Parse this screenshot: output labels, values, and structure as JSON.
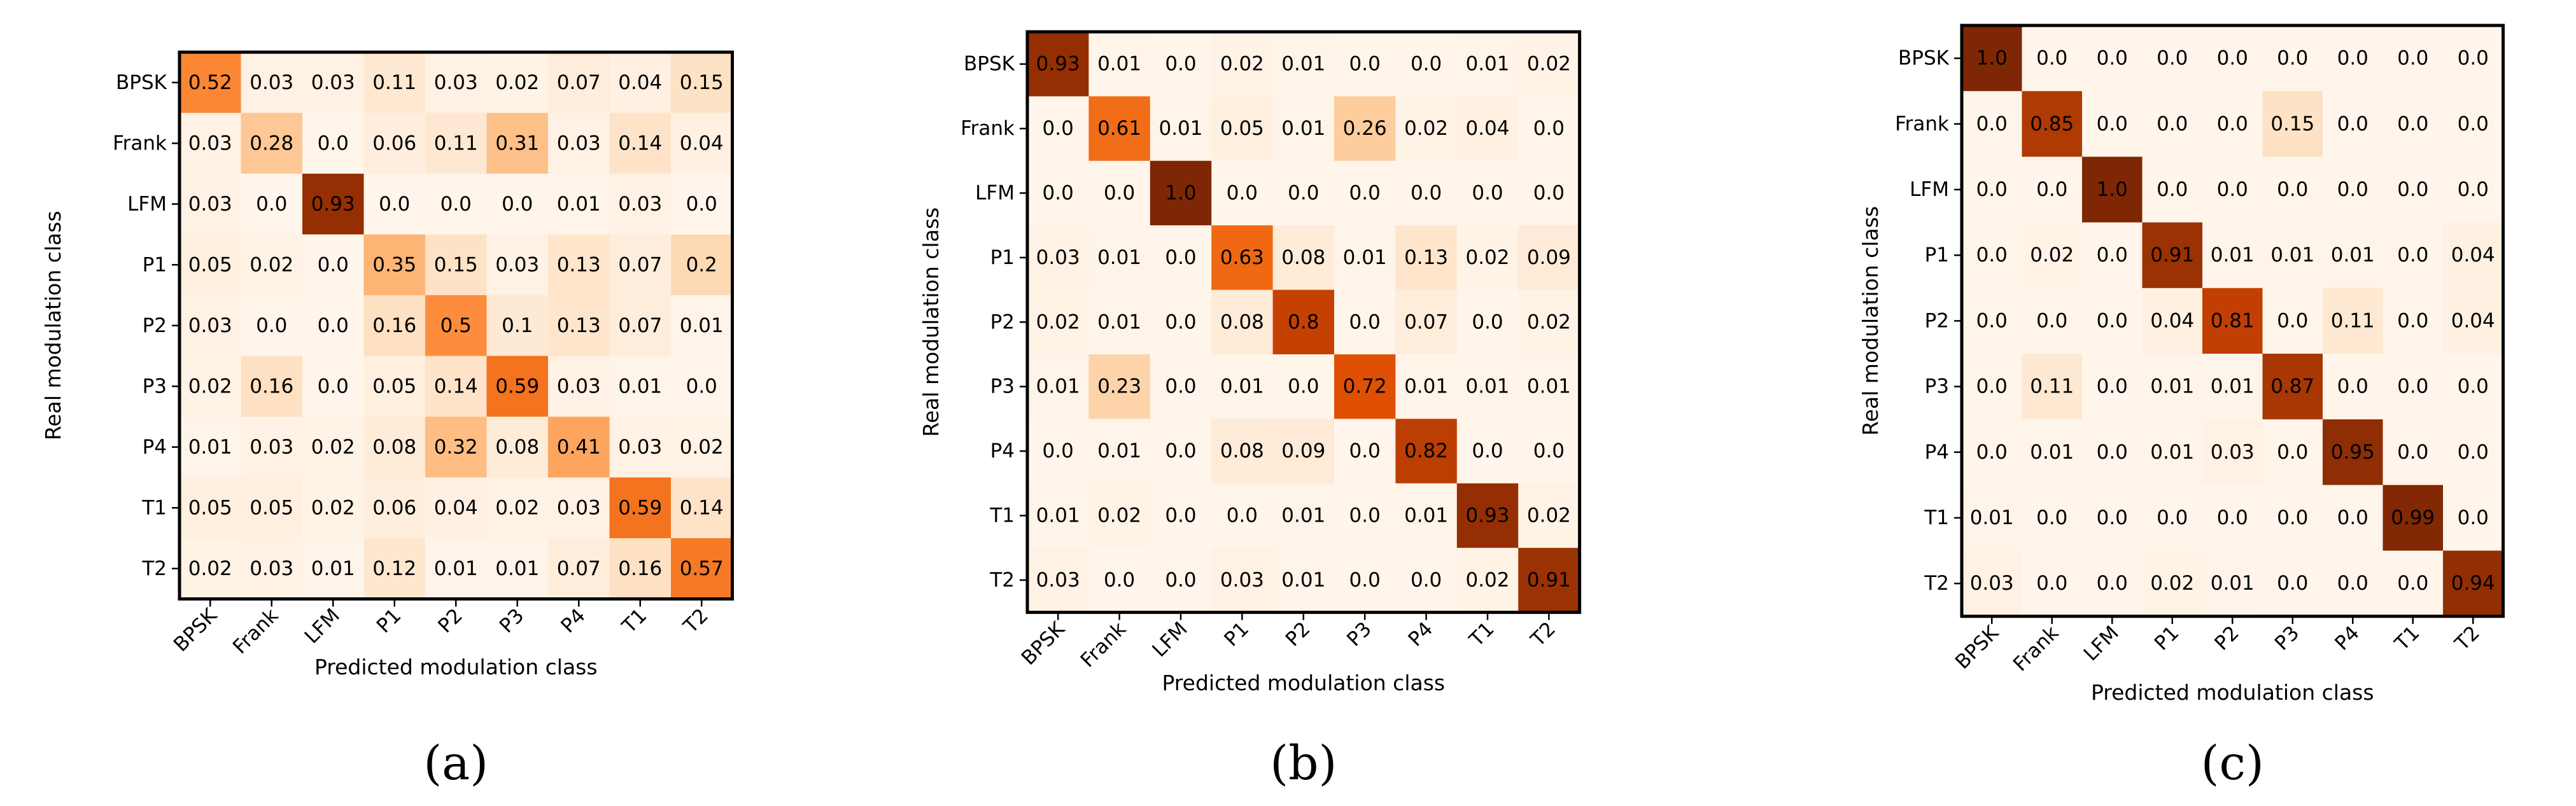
{
  "colors": {
    "cmap": [
      "#fff5eb",
      "#fee6ce",
      "#fdd0a2",
      "#fdae6b",
      "#fd8d3c",
      "#f16913",
      "#d94801",
      "#a63603",
      "#7f2704"
    ],
    "border": "#000000",
    "text_dark": "#000000"
  },
  "chart_data": [
    {
      "type": "heatmap",
      "panel": "(a)",
      "xlabel": "Predicted modulation class",
      "ylabel": "Real modulation class",
      "classes": [
        "BPSK",
        "Frank",
        "LFM",
        "P1",
        "P2",
        "P3",
        "P4",
        "T1",
        "T2"
      ],
      "values": [
        [
          "0.52",
          "0.03",
          "0.03",
          "0.11",
          "0.03",
          "0.02",
          "0.07",
          "0.04",
          "0.15"
        ],
        [
          "0.03",
          "0.28",
          "0.0",
          "0.06",
          "0.11",
          "0.31",
          "0.03",
          "0.14",
          "0.04"
        ],
        [
          "0.03",
          "0.0",
          "0.93",
          "0.0",
          "0.0",
          "0.0",
          "0.01",
          "0.03",
          "0.0"
        ],
        [
          "0.05",
          "0.02",
          "0.0",
          "0.35",
          "0.15",
          "0.03",
          "0.13",
          "0.07",
          "0.2"
        ],
        [
          "0.03",
          "0.0",
          "0.0",
          "0.16",
          "0.5",
          "0.1",
          "0.13",
          "0.07",
          "0.01"
        ],
        [
          "0.02",
          "0.16",
          "0.0",
          "0.05",
          "0.14",
          "0.59",
          "0.03",
          "0.01",
          "0.0"
        ],
        [
          "0.01",
          "0.03",
          "0.02",
          "0.08",
          "0.32",
          "0.08",
          "0.41",
          "0.03",
          "0.02"
        ],
        [
          "0.05",
          "0.05",
          "0.02",
          "0.06",
          "0.04",
          "0.02",
          "0.03",
          "0.59",
          "0.14"
        ],
        [
          "0.02",
          "0.03",
          "0.01",
          "0.12",
          "0.01",
          "0.01",
          "0.07",
          "0.16",
          "0.57"
        ]
      ]
    },
    {
      "type": "heatmap",
      "panel": "(b)",
      "xlabel": "Predicted modulation class",
      "ylabel": "Real modulation class",
      "classes": [
        "BPSK",
        "Frank",
        "LFM",
        "P1",
        "P2",
        "P3",
        "P4",
        "T1",
        "T2"
      ],
      "values": [
        [
          "0.93",
          "0.01",
          "0.0",
          "0.02",
          "0.01",
          "0.0",
          "0.0",
          "0.01",
          "0.02"
        ],
        [
          "0.0",
          "0.61",
          "0.01",
          "0.05",
          "0.01",
          "0.26",
          "0.02",
          "0.04",
          "0.0"
        ],
        [
          "0.0",
          "0.0",
          "1.0",
          "0.0",
          "0.0",
          "0.0",
          "0.0",
          "0.0",
          "0.0"
        ],
        [
          "0.03",
          "0.01",
          "0.0",
          "0.63",
          "0.08",
          "0.01",
          "0.13",
          "0.02",
          "0.09"
        ],
        [
          "0.02",
          "0.01",
          "0.0",
          "0.08",
          "0.8",
          "0.0",
          "0.07",
          "0.0",
          "0.02"
        ],
        [
          "0.01",
          "0.23",
          "0.0",
          "0.01",
          "0.0",
          "0.72",
          "0.01",
          "0.01",
          "0.01"
        ],
        [
          "0.0",
          "0.01",
          "0.0",
          "0.08",
          "0.09",
          "0.0",
          "0.82",
          "0.0",
          "0.0"
        ],
        [
          "0.01",
          "0.02",
          "0.0",
          "0.0",
          "0.01",
          "0.0",
          "0.01",
          "0.93",
          "0.02"
        ],
        [
          "0.03",
          "0.0",
          "0.0",
          "0.03",
          "0.01",
          "0.0",
          "0.0",
          "0.02",
          "0.91"
        ]
      ]
    },
    {
      "type": "heatmap",
      "panel": "(c)",
      "xlabel": "Predicted modulation class",
      "ylabel": "Real modulation class",
      "classes": [
        "BPSK",
        "Frank",
        "LFM",
        "P1",
        "P2",
        "P3",
        "P4",
        "T1",
        "T2"
      ],
      "values": [
        [
          "1.0",
          "0.0",
          "0.0",
          "0.0",
          "0.0",
          "0.0",
          "0.0",
          "0.0",
          "0.0"
        ],
        [
          "0.0",
          "0.85",
          "0.0",
          "0.0",
          "0.0",
          "0.15",
          "0.0",
          "0.0",
          "0.0"
        ],
        [
          "0.0",
          "0.0",
          "1.0",
          "0.0",
          "0.0",
          "0.0",
          "0.0",
          "0.0",
          "0.0"
        ],
        [
          "0.0",
          "0.02",
          "0.0",
          "0.91",
          "0.01",
          "0.01",
          "0.01",
          "0.0",
          "0.04"
        ],
        [
          "0.0",
          "0.0",
          "0.0",
          "0.04",
          "0.81",
          "0.0",
          "0.11",
          "0.0",
          "0.04"
        ],
        [
          "0.0",
          "0.11",
          "0.0",
          "0.01",
          "0.01",
          "0.87",
          "0.0",
          "0.0",
          "0.0"
        ],
        [
          "0.0",
          "0.01",
          "0.0",
          "0.01",
          "0.03",
          "0.0",
          "0.95",
          "0.0",
          "0.0"
        ],
        [
          "0.01",
          "0.0",
          "0.0",
          "0.0",
          "0.0",
          "0.0",
          "0.0",
          "0.99",
          "0.0"
        ],
        [
          "0.03",
          "0.0",
          "0.0",
          "0.02",
          "0.01",
          "0.0",
          "0.0",
          "0.0",
          "0.94"
        ]
      ]
    }
  ]
}
